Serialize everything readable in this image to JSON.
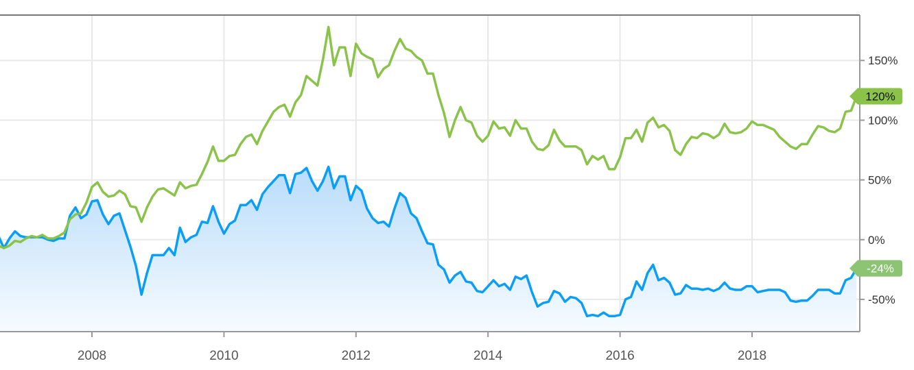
{
  "chart_data": {
    "type": "line",
    "title": "",
    "xlabel": "",
    "ylabel": "",
    "x_axis": {
      "type": "date",
      "ticks": [
        "2008",
        "2010",
        "2012",
        "2014",
        "2016",
        "2018"
      ],
      "range": [
        "2006-08",
        "2019-08"
      ]
    },
    "y_axis": {
      "position": "right",
      "ticks": [
        "150%",
        "100%",
        "50%",
        "0%",
        "-50%"
      ],
      "tick_values": [
        150,
        100,
        50,
        0,
        -50
      ],
      "ylim": [
        -77,
        188
      ],
      "unit": "%"
    },
    "grid": true,
    "legend": "none",
    "x": [
      "2006-08",
      "2006-09",
      "2006-10",
      "2006-11",
      "2006-12",
      "2007-01",
      "2007-02",
      "2007-03",
      "2007-04",
      "2007-05",
      "2007-06",
      "2007-07",
      "2007-08",
      "2007-09",
      "2007-10",
      "2007-11",
      "2007-12",
      "2008-01",
      "2008-02",
      "2008-03",
      "2008-04",
      "2008-05",
      "2008-06",
      "2008-07",
      "2008-08",
      "2008-09",
      "2008-10",
      "2008-11",
      "2008-12",
      "2009-01",
      "2009-02",
      "2009-03",
      "2009-04",
      "2009-05",
      "2009-06",
      "2009-07",
      "2009-08",
      "2009-09",
      "2009-10",
      "2009-11",
      "2009-12",
      "2010-01",
      "2010-02",
      "2010-03",
      "2010-04",
      "2010-05",
      "2010-06",
      "2010-07",
      "2010-08",
      "2010-09",
      "2010-10",
      "2010-11",
      "2010-12",
      "2011-01",
      "2011-02",
      "2011-03",
      "2011-04",
      "2011-05",
      "2011-06",
      "2011-07",
      "2011-08",
      "2011-09",
      "2011-10",
      "2011-11",
      "2011-12",
      "2012-01",
      "2012-02",
      "2012-03",
      "2012-04",
      "2012-05",
      "2012-06",
      "2012-07",
      "2012-08",
      "2012-09",
      "2012-10",
      "2012-11",
      "2012-12",
      "2013-01",
      "2013-02",
      "2013-03",
      "2013-04",
      "2013-05",
      "2013-06",
      "2013-07",
      "2013-08",
      "2013-09",
      "2013-10",
      "2013-11",
      "2013-12",
      "2014-01",
      "2014-02",
      "2014-03",
      "2014-04",
      "2014-05",
      "2014-06",
      "2014-07",
      "2014-08",
      "2014-09",
      "2014-10",
      "2014-11",
      "2014-12",
      "2015-01",
      "2015-02",
      "2015-03",
      "2015-04",
      "2015-05",
      "2015-06",
      "2015-07",
      "2015-08",
      "2015-09",
      "2015-10",
      "2015-11",
      "2015-12",
      "2016-01",
      "2016-02",
      "2016-03",
      "2016-04",
      "2016-05",
      "2016-06",
      "2016-07",
      "2016-08",
      "2016-09",
      "2016-10",
      "2016-11",
      "2016-12",
      "2017-01",
      "2017-02",
      "2017-03",
      "2017-04",
      "2017-05",
      "2017-06",
      "2017-07",
      "2017-08",
      "2017-09",
      "2017-10",
      "2017-11",
      "2017-12",
      "2018-01",
      "2018-02",
      "2018-03",
      "2018-04",
      "2018-05",
      "2018-06",
      "2018-07",
      "2018-08",
      "2018-09",
      "2018-10",
      "2018-11",
      "2018-12",
      "2019-01",
      "2019-02",
      "2019-03",
      "2019-04",
      "2019-05",
      "2019-06",
      "2019-07",
      "2019-08"
    ],
    "series": [
      {
        "color": "#8bc34a",
        "style": "line",
        "last_value_label": "120%",
        "values": [
          -5,
          -7,
          -5,
          -1,
          -2,
          1,
          3,
          2,
          4,
          1,
          1,
          3,
          6,
          17,
          21,
          22,
          31,
          44,
          48,
          40,
          36,
          37,
          41,
          38,
          28,
          27,
          15,
          27,
          36,
          42,
          43,
          40,
          37,
          48,
          43,
          45,
          46,
          55,
          65,
          78,
          66,
          66,
          70,
          71,
          80,
          86,
          88,
          80,
          91,
          99,
          107,
          111,
          113,
          103,
          115,
          121,
          137,
          133,
          129,
          151,
          178,
          146,
          161,
          161,
          137,
          164,
          156,
          153,
          151,
          136,
          143,
          146,
          158,
          168,
          160,
          158,
          153,
          150,
          139,
          139,
          121,
          106,
          86,
          100,
          111,
          100,
          98,
          87,
          82,
          87,
          99,
          93,
          94,
          87,
          100,
          93,
          93,
          82,
          76,
          75,
          79,
          92,
          83,
          78,
          78,
          78,
          75,
          63,
          70,
          67,
          70,
          59,
          59,
          69,
          85,
          85,
          92,
          82,
          98,
          102,
          94,
          96,
          91,
          75,
          71,
          80,
          86,
          85,
          89,
          88,
          85,
          88,
          97,
          90,
          89,
          90,
          93,
          99,
          96,
          96,
          94,
          92,
          86,
          82,
          78,
          76,
          80,
          80,
          88,
          95,
          94,
          91,
          90,
          93,
          107,
          108,
          120
        ]
      },
      {
        "color": "#0a9ef5",
        "style": "area",
        "last_value_label": "-24%",
        "values": [
          3,
          -7,
          1,
          7,
          3,
          2,
          2,
          2,
          2,
          0,
          -1,
          1,
          1,
          20,
          27,
          18,
          21,
          32,
          33,
          21,
          13,
          20,
          22,
          8,
          -6,
          -22,
          -46,
          -28,
          -13,
          -13,
          -13,
          -7,
          -13,
          10,
          -2,
          2,
          4,
          15,
          14,
          28,
          15,
          5,
          13,
          16,
          29,
          29,
          33,
          25,
          38,
          44,
          49,
          54,
          54,
          39,
          55,
          56,
          60,
          49,
          41,
          49,
          61,
          43,
          53,
          53,
          33,
          45,
          41,
          26,
          18,
          14,
          15,
          11,
          26,
          39,
          35,
          22,
          18,
          7,
          -3,
          -4,
          -21,
          -25,
          -36,
          -30,
          -27,
          -35,
          -36,
          -43,
          -44,
          -39,
          -34,
          -39,
          -37,
          -42,
          -31,
          -33,
          -30,
          -44,
          -56,
          -53,
          -52,
          -43,
          -45,
          -52,
          -48,
          -49,
          -53,
          -64,
          -63,
          -64,
          -61,
          -64,
          -64,
          -63,
          -50,
          -48,
          -35,
          -42,
          -28,
          -21,
          -34,
          -32,
          -36,
          -46,
          -45,
          -38,
          -41,
          -41,
          -42,
          -41,
          -43,
          -41,
          -36,
          -41,
          -42,
          -42,
          -39,
          -39,
          -44,
          -43,
          -42,
          -42,
          -42,
          -44,
          -51,
          -52,
          -51,
          -51,
          -47,
          -42,
          -42,
          -42,
          -45,
          -45,
          -34,
          -32,
          -24
        ]
      }
    ],
    "flag_colors": {
      "green": "#8bc34a",
      "green_light": "#8cc474"
    }
  }
}
